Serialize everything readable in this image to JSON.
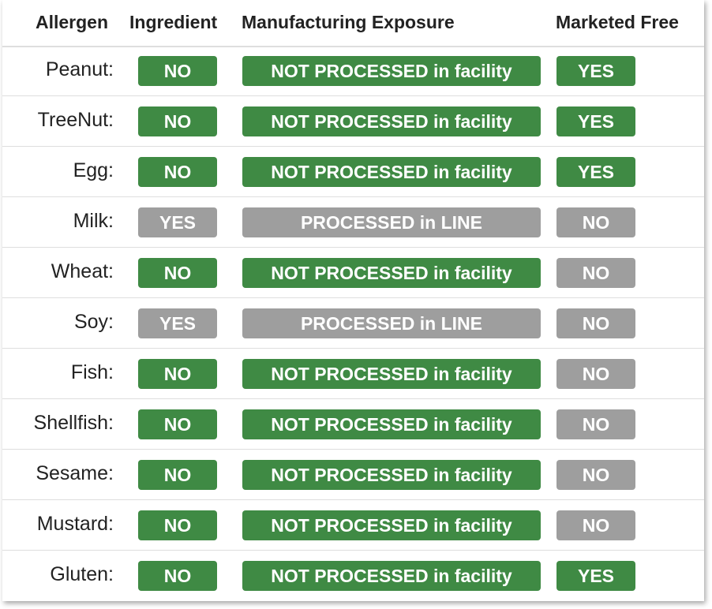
{
  "columns": {
    "allergen": "Allergen",
    "ingredient": "Ingredient",
    "exposure": "Manufacturing Exposure",
    "free": "Marketed Free"
  },
  "colors": {
    "positive": "#3f8a44",
    "negative": "#9e9e9e"
  },
  "rows": [
    {
      "allergen": "Peanut:",
      "ingredient": "NO",
      "exposure": "NOT PROCESSED in facility",
      "free": "YES"
    },
    {
      "allergen": "TreeNut:",
      "ingredient": "NO",
      "exposure": "NOT PROCESSED in facility",
      "free": "YES"
    },
    {
      "allergen": "Egg:",
      "ingredient": "NO",
      "exposure": "NOT PROCESSED in facility",
      "free": "YES"
    },
    {
      "allergen": "Milk:",
      "ingredient": "YES",
      "exposure": "PROCESSED in LINE",
      "free": "NO"
    },
    {
      "allergen": "Wheat:",
      "ingredient": "NO",
      "exposure": "NOT PROCESSED in facility",
      "free": "NO"
    },
    {
      "allergen": "Soy:",
      "ingredient": "YES",
      "exposure": "PROCESSED in LINE",
      "free": "NO"
    },
    {
      "allergen": "Fish:",
      "ingredient": "NO",
      "exposure": "NOT PROCESSED in facility",
      "free": "NO"
    },
    {
      "allergen": "Shellfish:",
      "ingredient": "NO",
      "exposure": "NOT PROCESSED in facility",
      "free": "NO"
    },
    {
      "allergen": "Sesame:",
      "ingredient": "NO",
      "exposure": "NOT PROCESSED in facility",
      "free": "NO"
    },
    {
      "allergen": "Mustard:",
      "ingredient": "NO",
      "exposure": "NOT PROCESSED in facility",
      "free": "NO"
    },
    {
      "allergen": "Gluten:",
      "ingredient": "NO",
      "exposure": "NOT PROCESSED in facility",
      "free": "YES"
    }
  ]
}
